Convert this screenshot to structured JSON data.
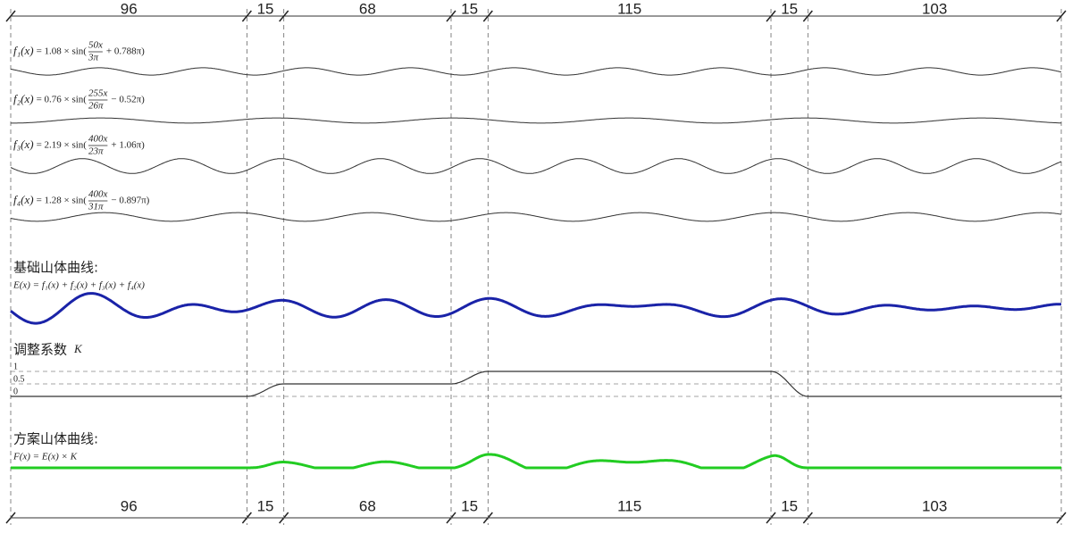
{
  "dimensions": [
    96,
    15,
    68,
    15,
    115,
    15,
    103
  ],
  "functions": [
    {
      "name": "f₁(x)",
      "expression_start": "= 1.08 × sin(",
      "numerator": "50x",
      "denominator": "3π",
      "expression_end": "+ 0.788π)",
      "amplitude": 1.08,
      "frequency_numerator": 50,
      "frequency_denominator": 3,
      "phase": 0.788
    },
    {
      "name": "f₂(x)",
      "expression_start": "= 0.76 × sin(",
      "numerator": "255x",
      "denominator": "26π",
      "expression_end": "− 0.52π)",
      "amplitude": 0.76,
      "frequency_numerator": 255,
      "frequency_denominator": 26,
      "phase": -0.52
    },
    {
      "name": "f₃(x)",
      "expression_start": "= 2.19 × sin(",
      "numerator": "400x",
      "denominator": "23π",
      "expression_end": "+ 1.06π)",
      "amplitude": 2.19,
      "frequency_numerator": 400,
      "frequency_denominator": 23,
      "phase": 1.06
    },
    {
      "name": "f₄(x)",
      "expression_start": "= 1.28 × sin(",
      "numerator": "400x",
      "denominator": "31π",
      "expression_end": "− 0.897π)",
      "amplitude": 1.28,
      "frequency_numerator": 400,
      "frequency_denominator": 31,
      "phase": -0.897
    }
  ],
  "base_curve": {
    "title": "基础山体曲线:",
    "formula": "E(x) = f₁(x) + f₂(x) + f₃(x) + f₄(x)"
  },
  "adjustment": {
    "title": "调整系数",
    "symbol": "K",
    "ticks": [
      1,
      0.5,
      0
    ],
    "levels": [
      0,
      0.5,
      1,
      0
    ]
  },
  "result_curve": {
    "title": "方案山体曲线:",
    "formula": "F(x) = E(x) × K"
  }
}
